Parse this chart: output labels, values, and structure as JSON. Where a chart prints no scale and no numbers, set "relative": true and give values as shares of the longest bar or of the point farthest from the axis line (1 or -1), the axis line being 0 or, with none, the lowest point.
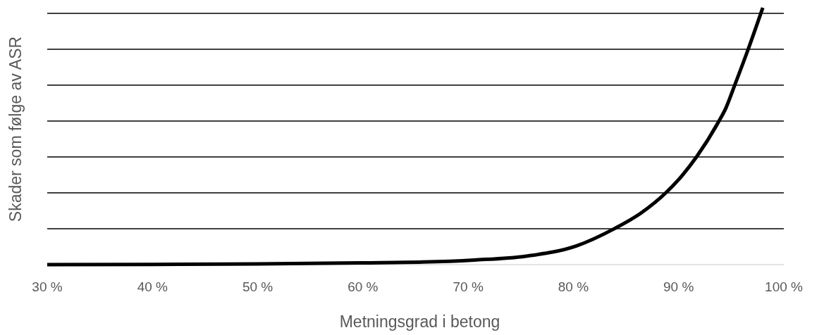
{
  "chart_data": {
    "type": "line",
    "relative": true,
    "xlabel": "Metningsgrad i betong",
    "ylabel": "Skader som følge av ASR",
    "xlim": [
      30,
      100
    ],
    "xticks": [
      {
        "value": 30,
        "label": "30 %"
      },
      {
        "value": 40,
        "label": "40 %"
      },
      {
        "value": 50,
        "label": "50 %"
      },
      {
        "value": 60,
        "label": "60 %"
      },
      {
        "value": 70,
        "label": "70 %"
      },
      {
        "value": 80,
        "label": "80 %"
      },
      {
        "value": 90,
        "label": "90 %"
      },
      {
        "value": 100,
        "label": "100 %"
      }
    ],
    "grid": true,
    "marker": "none",
    "line_style": "solid",
    "series": [
      {
        "color": "#000000",
        "x": [
          30,
          40,
          50,
          60,
          65.7,
          70.6,
          75.5,
          80.3,
          83.9,
          86.4,
          88.8,
          90.3,
          91.7,
          93.8,
          94.5,
          95.3,
          96.6,
          98.0
        ],
        "values": [
          0,
          0.001,
          0.003,
          0.007,
          0.01,
          0.018,
          0.033,
          0.073,
          0.14,
          0.2,
          0.28,
          0.345,
          0.419,
          0.556,
          0.61,
          0.695,
          0.837,
          1.0
        ]
      }
    ]
  }
}
